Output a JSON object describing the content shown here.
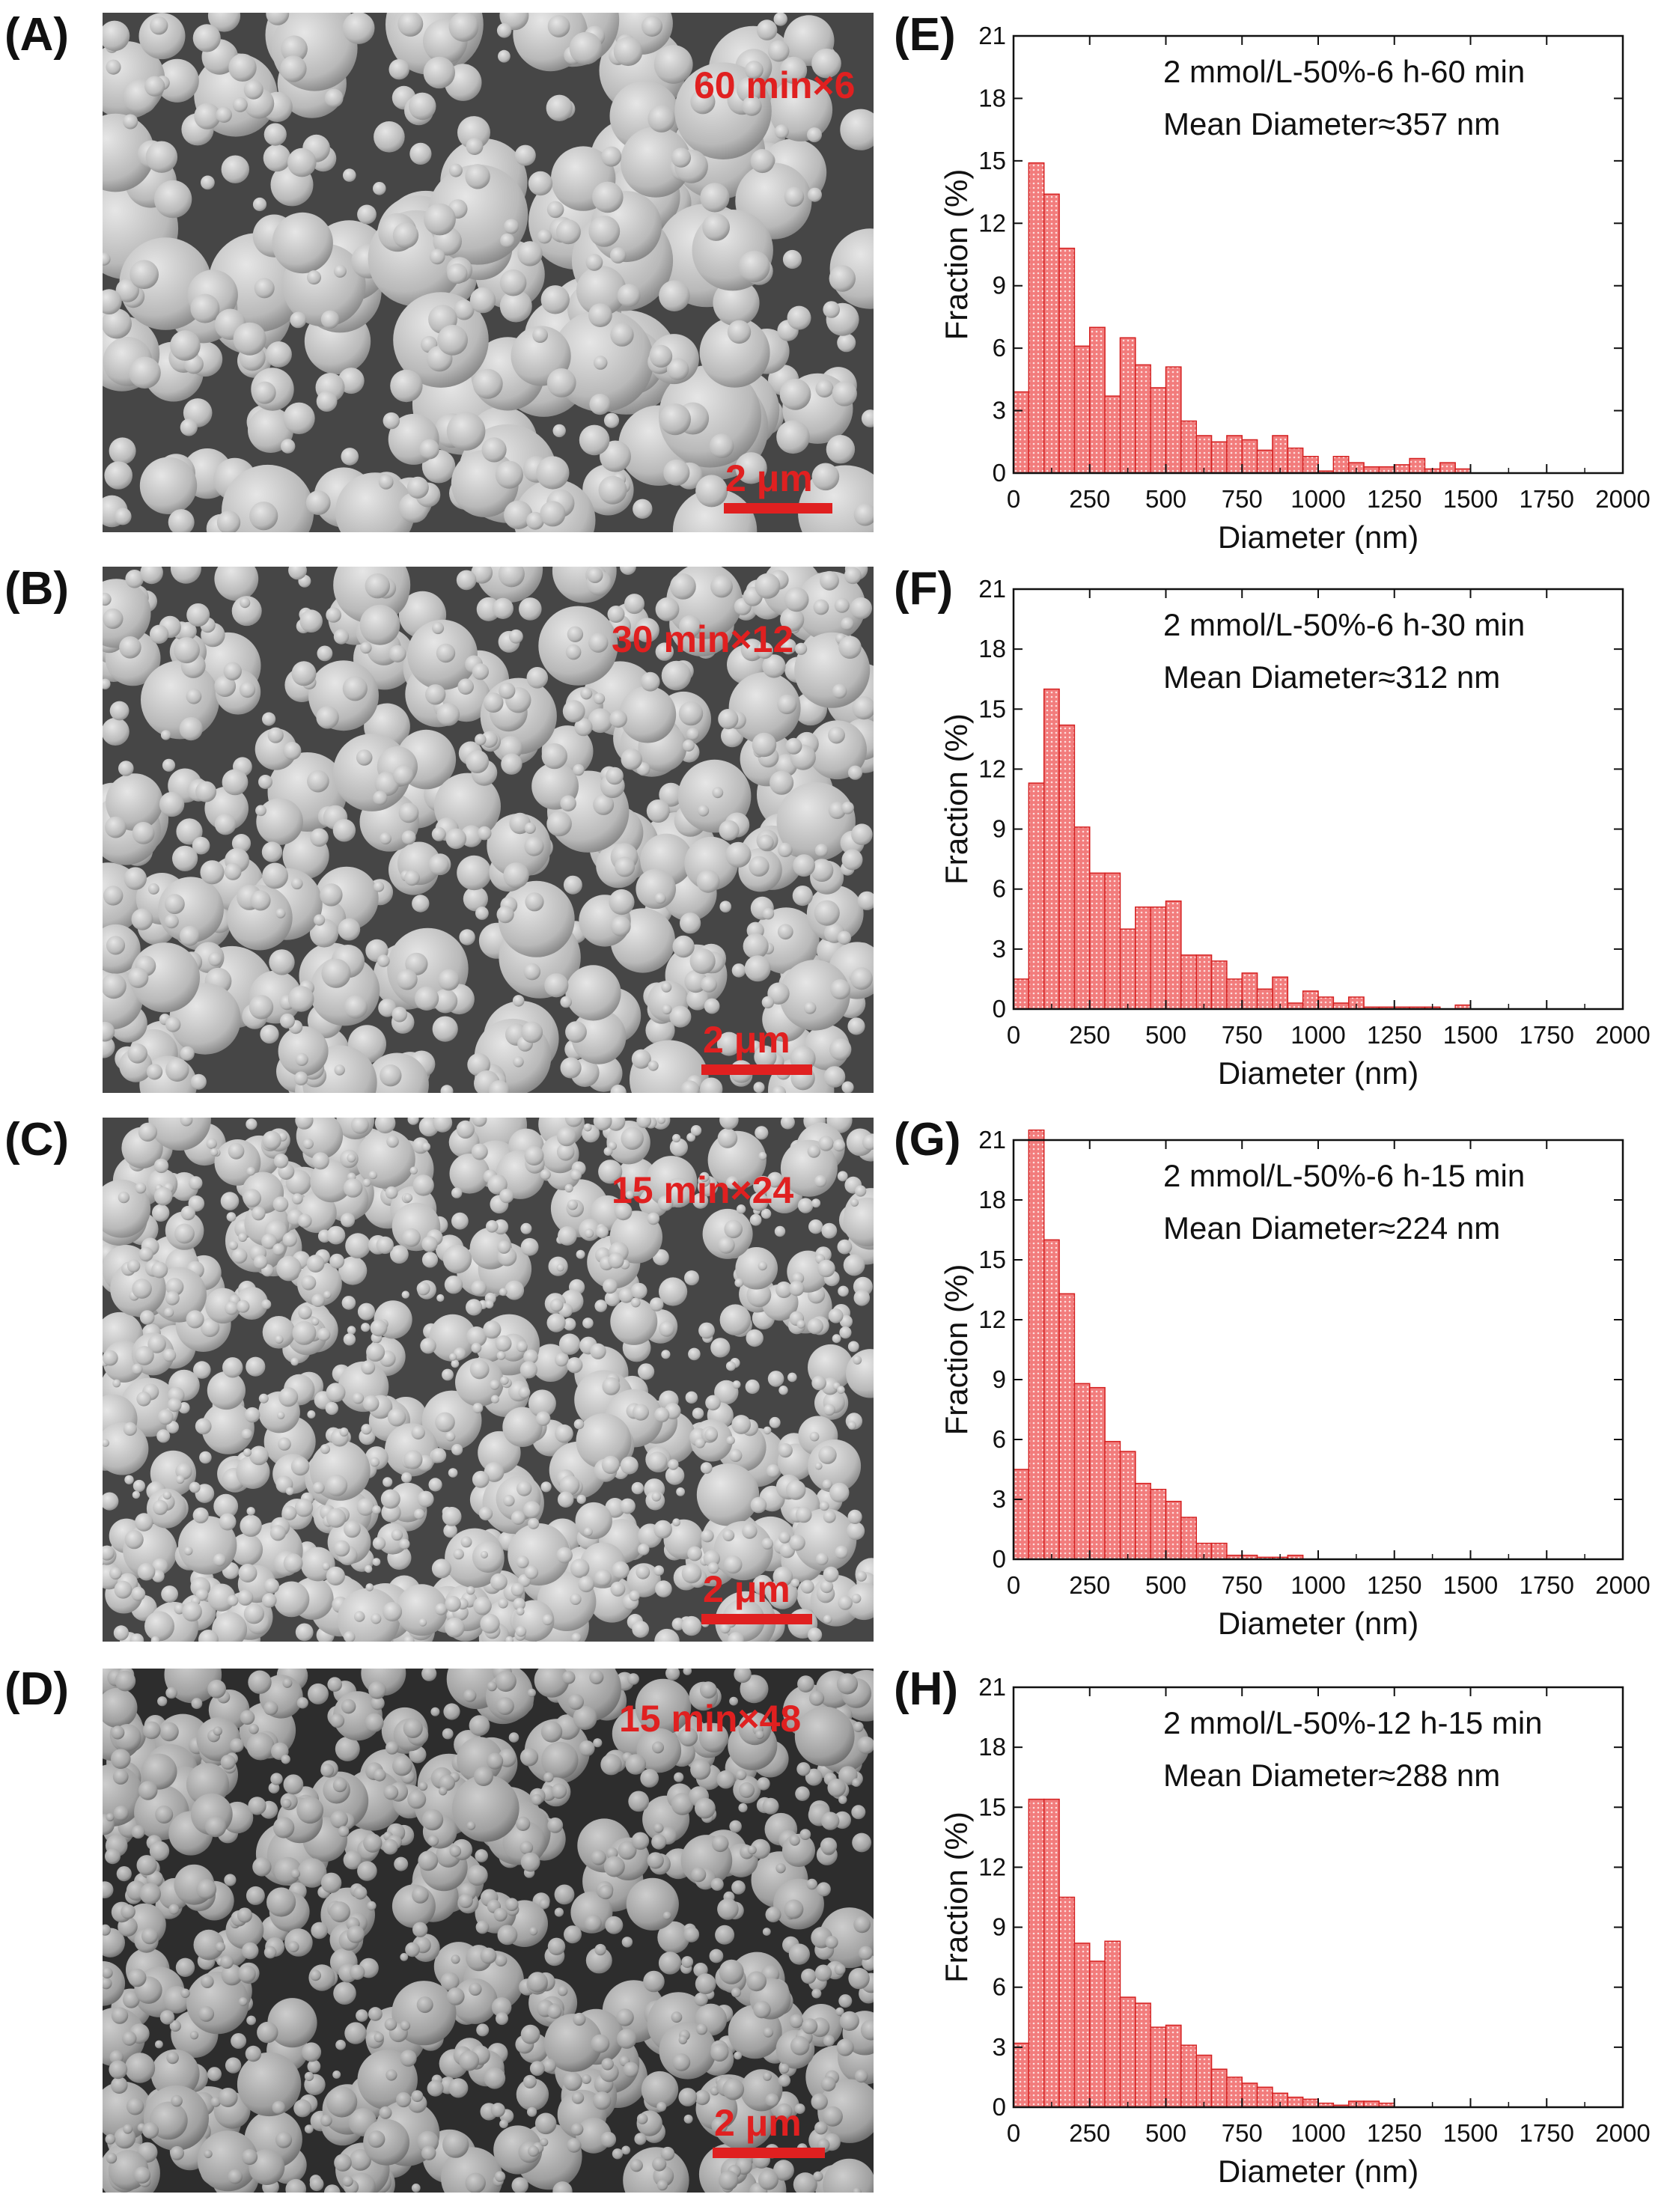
{
  "colors": {
    "bar_fill": "#f27c7c",
    "bar_edge": "#d42020",
    "annotation_red": "#e02020",
    "axis": "#111111"
  },
  "panels": [
    {
      "label": "(A)",
      "sem_tag": "60 min×6",
      "scale_label": "2 μm"
    },
    {
      "label": "(B)",
      "sem_tag": "30 min×12",
      "scale_label": "2 μm"
    },
    {
      "label": "(C)",
      "sem_tag": "15 min×24",
      "scale_label": "2 μm"
    },
    {
      "label": "(D)",
      "sem_tag": "15 min×48",
      "scale_label": "2 μm"
    }
  ],
  "hist_labels": [
    "(E)",
    "(F)",
    "(G)",
    "(H)"
  ],
  "chart_data": [
    {
      "type": "bar",
      "title": "2 mmol/L-50%-6 h-60 min",
      "subtitle": "Mean Diameter≈357 nm",
      "xlabel": "Diameter (nm)",
      "ylabel": "Fraction (%)",
      "xlim": [
        0,
        2000
      ],
      "ylim": [
        0,
        21
      ],
      "xticks": [
        0,
        250,
        500,
        750,
        1000,
        1250,
        1500,
        1750,
        2000
      ],
      "yticks": [
        0,
        3,
        6,
        9,
        12,
        15,
        18,
        21
      ],
      "bin_width": 50,
      "bin_start": [
        0,
        50,
        100,
        150,
        200,
        250,
        300,
        350,
        400,
        450,
        500,
        550,
        600,
        650,
        700,
        750,
        800,
        850,
        900,
        950,
        1000,
        1050,
        1100,
        1150,
        1200,
        1250,
        1300,
        1350,
        1400,
        1450,
        1500
      ],
      "values": [
        3.9,
        14.9,
        13.4,
        10.8,
        6.1,
        7.0,
        3.7,
        6.5,
        5.2,
        4.1,
        5.1,
        2.5,
        1.8,
        1.5,
        1.8,
        1.6,
        1.1,
        1.8,
        1.2,
        0.8,
        0.1,
        0.8,
        0.5,
        0.3,
        0.3,
        0.4,
        0.7,
        0.2,
        0.5,
        0.2,
        0.0
      ]
    },
    {
      "type": "bar",
      "title": "2 mmol/L-50%-6 h-30 min",
      "subtitle": "Mean Diameter≈312 nm",
      "xlabel": "Diameter (nm)",
      "ylabel": "Fraction (%)",
      "xlim": [
        0,
        2000
      ],
      "ylim": [
        0,
        21
      ],
      "xticks": [
        0,
        250,
        500,
        750,
        1000,
        1250,
        1500,
        1750,
        2000
      ],
      "yticks": [
        0,
        3,
        6,
        9,
        12,
        15,
        18,
        21
      ],
      "bin_width": 50,
      "bin_start": [
        0,
        50,
        100,
        150,
        200,
        250,
        300,
        350,
        400,
        450,
        500,
        550,
        600,
        650,
        700,
        750,
        800,
        850,
        900,
        950,
        1000,
        1050,
        1100,
        1150,
        1200,
        1250,
        1300,
        1350,
        1400,
        1450,
        1500
      ],
      "values": [
        1.5,
        11.3,
        16.0,
        14.2,
        9.1,
        6.8,
        6.8,
        4.0,
        5.1,
        5.1,
        5.4,
        2.7,
        2.7,
        2.4,
        1.5,
        1.8,
        1.0,
        1.6,
        0.3,
        0.9,
        0.6,
        0.3,
        0.6,
        0.1,
        0.1,
        0.1,
        0.1,
        0.1,
        0.0,
        0.2,
        0.0
      ]
    },
    {
      "type": "bar",
      "title": "2 mmol/L-50%-6 h-15 min",
      "subtitle": "Mean Diameter≈224 nm",
      "xlabel": "Diameter (nm)",
      "ylabel": "Fraction (%)",
      "xlim": [
        0,
        2000
      ],
      "ylim": [
        0,
        21
      ],
      "xticks": [
        0,
        250,
        500,
        750,
        1000,
        1250,
        1500,
        1750,
        2000
      ],
      "yticks": [
        0,
        3,
        6,
        9,
        12,
        15,
        18,
        21
      ],
      "bin_width": 50,
      "bin_start": [
        0,
        50,
        100,
        150,
        200,
        250,
        300,
        350,
        400,
        450,
        500,
        550,
        600,
        650,
        700,
        750,
        800,
        850,
        900,
        950,
        1000
      ],
      "values": [
        4.5,
        21.5,
        16.0,
        13.3,
        8.8,
        8.6,
        5.9,
        5.4,
        3.8,
        3.5,
        2.9,
        2.1,
        0.8,
        0.8,
        0.2,
        0.2,
        0.1,
        0.1,
        0.2,
        0.0,
        0.0
      ]
    },
    {
      "type": "bar",
      "title": "2 mmol/L-50%-12 h-15 min",
      "subtitle": "Mean Diameter≈288 nm",
      "xlabel": "Diameter (nm)",
      "ylabel": "Fraction (%)",
      "xlim": [
        0,
        2000
      ],
      "ylim": [
        0,
        21
      ],
      "xticks": [
        0,
        250,
        500,
        750,
        1000,
        1250,
        1500,
        1750,
        2000
      ],
      "yticks": [
        0,
        3,
        6,
        9,
        12,
        15,
        18,
        21
      ],
      "bin_width": 50,
      "bin_start": [
        0,
        50,
        100,
        150,
        200,
        250,
        300,
        350,
        400,
        450,
        500,
        550,
        600,
        650,
        700,
        750,
        800,
        850,
        900,
        950,
        1000,
        1050,
        1100,
        1150,
        1200,
        1250
      ],
      "values": [
        3.2,
        15.4,
        15.4,
        10.5,
        8.2,
        7.3,
        8.3,
        5.5,
        5.2,
        4.0,
        4.1,
        3.1,
        2.6,
        1.9,
        1.5,
        1.2,
        1.0,
        0.7,
        0.5,
        0.4,
        0.2,
        0.1,
        0.3,
        0.3,
        0.2,
        0.0
      ]
    }
  ]
}
